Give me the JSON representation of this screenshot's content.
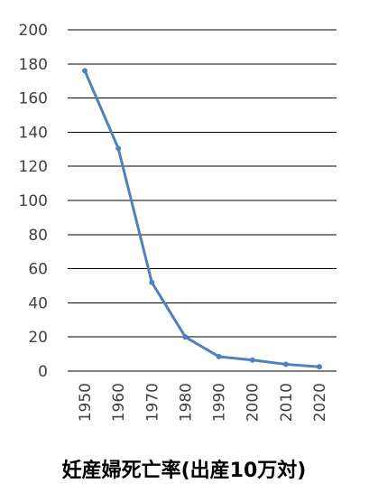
{
  "chart_data": {
    "type": "line",
    "title": "妊産婦死亡率(出産10万対)",
    "xlabel": "",
    "ylabel": "",
    "x": [
      "1950",
      "1960",
      "1970",
      "1980",
      "1990",
      "2000",
      "2010",
      "2020"
    ],
    "series": [
      {
        "values": [
          176,
          130.5,
          52,
          20,
          8.5,
          6.5,
          4,
          2.5
        ]
      }
    ],
    "ylim": [
      0,
      200
    ],
    "yticks": [
      "0",
      "20",
      "40",
      "60",
      "80",
      "100",
      "120",
      "140",
      "160",
      "180",
      "200"
    ],
    "grid": true,
    "legend": "none",
    "line_color": "#4f81bd",
    "grid_color": "#000000",
    "x_tick_rotation": "vertical"
  }
}
